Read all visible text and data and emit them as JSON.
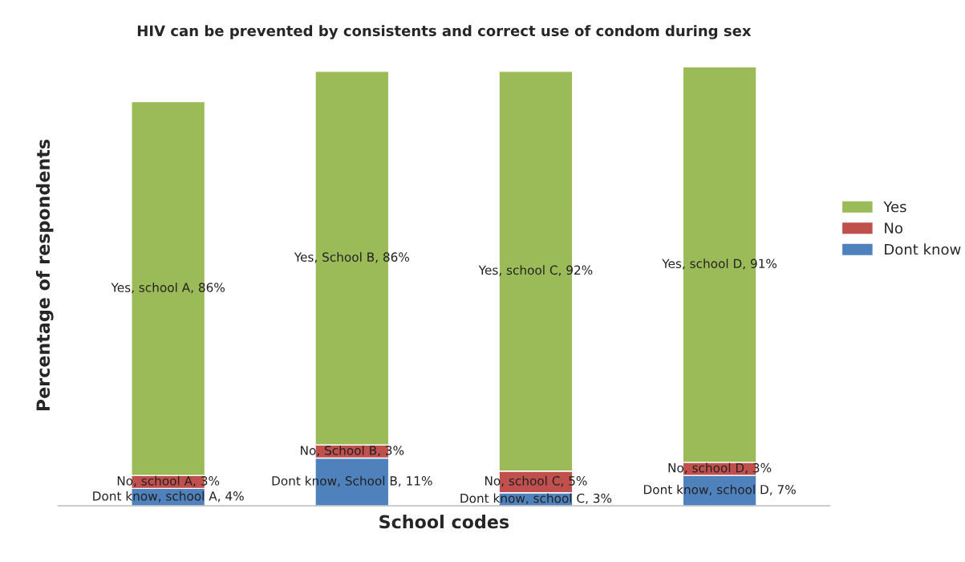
{
  "chart_data": {
    "type": "bar",
    "stacked": true,
    "title": "HIV can be prevented by consistents and correct use of condom during sex",
    "xlabel": "School codes",
    "ylabel": "Percentage of respondents",
    "categories": [
      null,
      null,
      null,
      null
    ],
    "series": [
      {
        "name": "Dont know",
        "color": "#4f81bd",
        "values": [
          4,
          11,
          3,
          7
        ],
        "value_labels": [
          "Dont know, school A, 4%",
          "Dont know, School B, 11%",
          "Dont know, school C, 3%",
          "Dont know, school D, 7%"
        ]
      },
      {
        "name": "No",
        "color": "#c0504d",
        "values": [
          3,
          3,
          5,
          3
        ],
        "value_labels": [
          "No, school A, 3%",
          "No, School B, 3%",
          "No, school C, 5%",
          "No, school D, 3%"
        ]
      },
      {
        "name": "Yes",
        "color": "#9bbb59",
        "values": [
          86,
          86,
          92,
          91
        ],
        "value_labels": [
          "Yes, school A, 86%",
          "Yes, School B, 86%",
          "Yes, school C, 92%",
          "Yes, school D, 91%"
        ]
      }
    ],
    "legend": "right",
    "grid": false,
    "tick_labels": false
  }
}
